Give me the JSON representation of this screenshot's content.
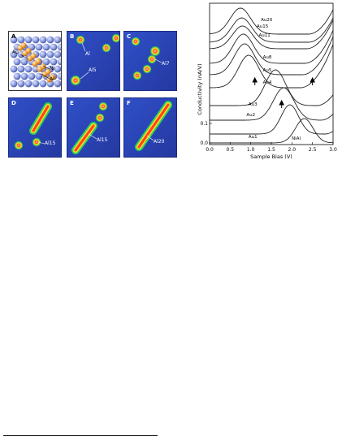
{
  "panels": [
    {
      "id": "A",
      "annotations": [
        "Au",
        "Ni",
        "Al"
      ]
    },
    {
      "id": "B",
      "annotations": [
        "Al",
        "Al5"
      ]
    },
    {
      "id": "C",
      "annotations": [
        "Al7"
      ]
    },
    {
      "id": "D",
      "annotations": [
        "Al15"
      ]
    },
    {
      "id": "E",
      "annotations": [
        "Al15"
      ]
    },
    {
      "id": "F",
      "annotations": [
        "Al20"
      ]
    }
  ],
  "chart_data": {
    "type": "line",
    "xlabel": "Sample Bias (V)",
    "ylabel": "Conductivity (nA/V)",
    "xlim": [
      0.0,
      3.0
    ],
    "xticks": [
      "0.0",
      "0.5",
      "1.0",
      "1.5",
      "2.0",
      "2.5",
      "3.0"
    ],
    "yticks": [
      "0.0",
      "0.1"
    ],
    "series": [
      {
        "name": "Au20"
      },
      {
        "name": "Au15"
      },
      {
        "name": "Au11"
      },
      {
        "name": "Au8"
      },
      {
        "name": "Au5"
      },
      {
        "name": "Au4"
      },
      {
        "name": "Au3"
      },
      {
        "name": "Au2"
      },
      {
        "name": "Au1"
      },
      {
        "name": "NiAl"
      }
    ]
  }
}
